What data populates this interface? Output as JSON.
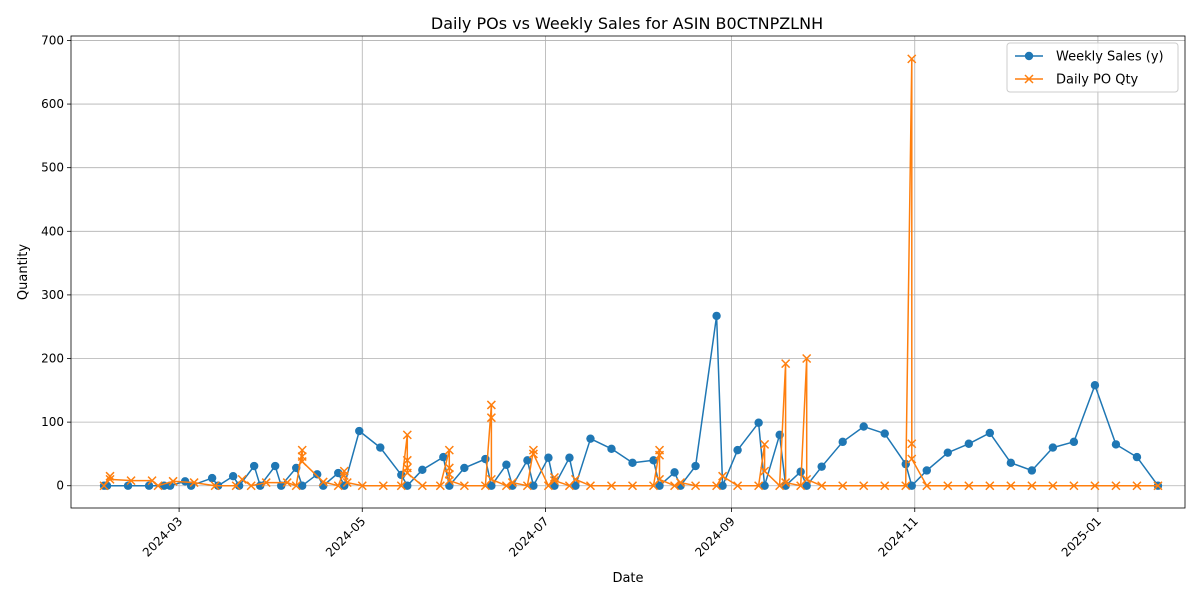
{
  "colors": {
    "sales": "#1f77b4",
    "po": "#ff7f0e"
  },
  "chart_data": {
    "type": "line",
    "title": "Daily POs vs Weekly Sales for ASIN B0CTNPZLNH",
    "xlabel": "Date",
    "ylabel": "Quantity",
    "xlim": [
      "2024-01-25",
      "2025-01-30"
    ],
    "ylim": [
      -35,
      707
    ],
    "x_ticks": [
      "2024-03-01",
      "2024-05-01",
      "2024-07-01",
      "2024-09-01",
      "2024-11-01",
      "2025-01-01"
    ],
    "x_tick_labels": [
      "2024-03",
      "2024-05",
      "2024-07",
      "2024-09",
      "2024-11",
      "2025-01"
    ],
    "y_ticks": [
      0,
      100,
      200,
      300,
      400,
      500,
      600,
      700
    ],
    "y_tick_labels": [
      "0",
      "100",
      "200",
      "300",
      "400",
      "500",
      "600",
      "700"
    ],
    "grid": true,
    "legend_position": "top-right",
    "series": [
      {
        "name": "Weekly Sales (y)",
        "marker": "circle",
        "points": [
          [
            "2024-02-05",
            0
          ],
          [
            "2024-02-06",
            0
          ],
          [
            "2024-02-13",
            0
          ],
          [
            "2024-02-20",
            0
          ],
          [
            "2024-02-25",
            0
          ],
          [
            "2024-02-27",
            0
          ],
          [
            "2024-03-03",
            7
          ],
          [
            "2024-03-05",
            0
          ],
          [
            "2024-03-12",
            12
          ],
          [
            "2024-03-14",
            0
          ],
          [
            "2024-03-19",
            15
          ],
          [
            "2024-03-21",
            0
          ],
          [
            "2024-03-26",
            31
          ],
          [
            "2024-03-28",
            0
          ],
          [
            "2024-04-02",
            31
          ],
          [
            "2024-04-04",
            0
          ],
          [
            "2024-04-09",
            28
          ],
          [
            "2024-04-11",
            0
          ],
          [
            "2024-04-16",
            18
          ],
          [
            "2024-04-18",
            0
          ],
          [
            "2024-04-23",
            20
          ],
          [
            "2024-04-25",
            0
          ],
          [
            "2024-04-30",
            86
          ],
          [
            "2024-05-07",
            60
          ],
          [
            "2024-05-14",
            17
          ],
          [
            "2024-05-16",
            0
          ],
          [
            "2024-05-21",
            25
          ],
          [
            "2024-05-28",
            45
          ],
          [
            "2024-05-30",
            0
          ],
          [
            "2024-06-04",
            28
          ],
          [
            "2024-06-11",
            42
          ],
          [
            "2024-06-13",
            0
          ],
          [
            "2024-06-18",
            33
          ],
          [
            "2024-06-20",
            0
          ],
          [
            "2024-06-25",
            40
          ],
          [
            "2024-06-27",
            0
          ],
          [
            "2024-07-02",
            44
          ],
          [
            "2024-07-04",
            0
          ],
          [
            "2024-07-09",
            44
          ],
          [
            "2024-07-11",
            0
          ],
          [
            "2024-07-16",
            74
          ],
          [
            "2024-07-23",
            58
          ],
          [
            "2024-07-30",
            36
          ],
          [
            "2024-08-06",
            40
          ],
          [
            "2024-08-08",
            0
          ],
          [
            "2024-08-13",
            21
          ],
          [
            "2024-08-15",
            0
          ],
          [
            "2024-08-20",
            31
          ],
          [
            "2024-08-27",
            267
          ],
          [
            "2024-08-29",
            0
          ],
          [
            "2024-09-03",
            56
          ],
          [
            "2024-09-10",
            99
          ],
          [
            "2024-09-12",
            0
          ],
          [
            "2024-09-17",
            80
          ],
          [
            "2024-09-19",
            0
          ],
          [
            "2024-09-24",
            22
          ],
          [
            "2024-09-26",
            0
          ],
          [
            "2024-10-01",
            30
          ],
          [
            "2024-10-08",
            69
          ],
          [
            "2024-10-15",
            93
          ],
          [
            "2024-10-22",
            82
          ],
          [
            "2024-10-29",
            34
          ],
          [
            "2024-10-31",
            0
          ],
          [
            "2024-11-05",
            24
          ],
          [
            "2024-11-12",
            52
          ],
          [
            "2024-11-19",
            66
          ],
          [
            "2024-11-26",
            83
          ],
          [
            "2024-12-03",
            36
          ],
          [
            "2024-12-10",
            24
          ],
          [
            "2024-12-17",
            60
          ],
          [
            "2024-12-24",
            69
          ],
          [
            "2024-12-31",
            158
          ],
          [
            "2025-01-07",
            65
          ],
          [
            "2025-01-14",
            45
          ],
          [
            "2025-01-21",
            0
          ]
        ]
      },
      {
        "name": "Daily PO Qty",
        "marker": "x",
        "points": [
          [
            "2024-02-05",
            0
          ],
          [
            "2024-02-07",
            15
          ],
          [
            "2024-02-07",
            10
          ],
          [
            "2024-02-14",
            8
          ],
          [
            "2024-02-21",
            8
          ],
          [
            "2024-02-23",
            0
          ],
          [
            "2024-02-28",
            7
          ],
          [
            "2024-03-06",
            5
          ],
          [
            "2024-03-13",
            0
          ],
          [
            "2024-03-20",
            0
          ],
          [
            "2024-03-22",
            10
          ],
          [
            "2024-03-25",
            0
          ],
          [
            "2024-03-30",
            5
          ],
          [
            "2024-04-06",
            5
          ],
          [
            "2024-04-09",
            0
          ],
          [
            "2024-04-11",
            56
          ],
          [
            "2024-04-11",
            46
          ],
          [
            "2024-04-11",
            38
          ],
          [
            "2024-04-18",
            6
          ],
          [
            "2024-04-23",
            0
          ],
          [
            "2024-04-25",
            23
          ],
          [
            "2024-04-25",
            16
          ],
          [
            "2024-04-26",
            5
          ],
          [
            "2024-05-01",
            0
          ],
          [
            "2024-05-08",
            0
          ],
          [
            "2024-05-14",
            0
          ],
          [
            "2024-05-16",
            80
          ],
          [
            "2024-05-16",
            40
          ],
          [
            "2024-05-16",
            28
          ],
          [
            "2024-05-16",
            20
          ],
          [
            "2024-05-21",
            0
          ],
          [
            "2024-05-27",
            0
          ],
          [
            "2024-05-30",
            56
          ],
          [
            "2024-05-30",
            28
          ],
          [
            "2024-05-30",
            18
          ],
          [
            "2024-05-30",
            8
          ],
          [
            "2024-06-04",
            0
          ],
          [
            "2024-06-11",
            0
          ],
          [
            "2024-06-13",
            127
          ],
          [
            "2024-06-13",
            107
          ],
          [
            "2024-06-13",
            10
          ],
          [
            "2024-06-18",
            0
          ],
          [
            "2024-06-20",
            5
          ],
          [
            "2024-06-25",
            0
          ],
          [
            "2024-06-27",
            56
          ],
          [
            "2024-06-27",
            50
          ],
          [
            "2024-07-02",
            0
          ],
          [
            "2024-07-04",
            13
          ],
          [
            "2024-07-04",
            8
          ],
          [
            "2024-07-09",
            0
          ],
          [
            "2024-07-11",
            10
          ],
          [
            "2024-07-16",
            0
          ],
          [
            "2024-07-23",
            0
          ],
          [
            "2024-07-30",
            0
          ],
          [
            "2024-08-06",
            0
          ],
          [
            "2024-08-08",
            56
          ],
          [
            "2024-08-08",
            48
          ],
          [
            "2024-08-08",
            10
          ],
          [
            "2024-08-13",
            0
          ],
          [
            "2024-08-15",
            5
          ],
          [
            "2024-08-20",
            0
          ],
          [
            "2024-08-27",
            0
          ],
          [
            "2024-08-29",
            15
          ],
          [
            "2024-09-03",
            0
          ],
          [
            "2024-09-10",
            0
          ],
          [
            "2024-09-12",
            65
          ],
          [
            "2024-09-12",
            23
          ],
          [
            "2024-09-17",
            0
          ],
          [
            "2024-09-19",
            192
          ],
          [
            "2024-09-19",
            5
          ],
          [
            "2024-09-24",
            0
          ],
          [
            "2024-09-26",
            200
          ],
          [
            "2024-09-26",
            10
          ],
          [
            "2024-10-01",
            0
          ],
          [
            "2024-10-08",
            0
          ],
          [
            "2024-10-15",
            0
          ],
          [
            "2024-10-22",
            0
          ],
          [
            "2024-10-29",
            0
          ],
          [
            "2024-10-31",
            671
          ],
          [
            "2024-10-31",
            66
          ],
          [
            "2024-10-31",
            42
          ],
          [
            "2024-11-05",
            0
          ],
          [
            "2024-11-12",
            0
          ],
          [
            "2024-11-19",
            0
          ],
          [
            "2024-11-26",
            0
          ],
          [
            "2024-12-03",
            0
          ],
          [
            "2024-12-10",
            0
          ],
          [
            "2024-12-17",
            0
          ],
          [
            "2024-12-24",
            0
          ],
          [
            "2024-12-31",
            0
          ],
          [
            "2025-01-07",
            0
          ],
          [
            "2025-01-14",
            0
          ],
          [
            "2025-01-21",
            0
          ]
        ]
      }
    ]
  }
}
